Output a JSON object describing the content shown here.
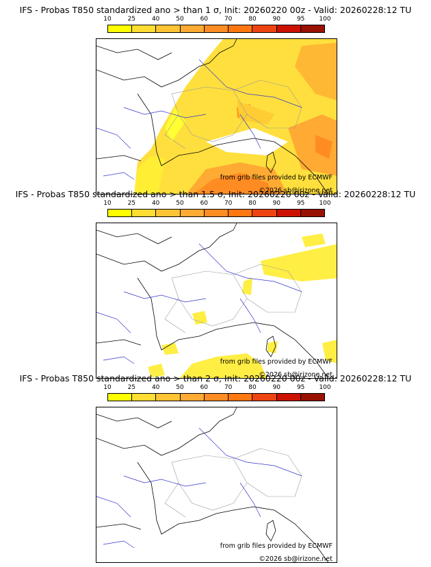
{
  "colorbar": {
    "ticks": [
      "10",
      "25",
      "40",
      "50",
      "60",
      "70",
      "80",
      "90",
      "95",
      "100"
    ],
    "colors": [
      "#ffff00",
      "#ffdd33",
      "#ffc433",
      "#ffaa33",
      "#ff8c22",
      "#ff7711",
      "#ee4411",
      "#cc1100",
      "#991100",
      "#660800"
    ]
  },
  "panels": [
    {
      "title": "IFS - Probas T850  standardized ano > than 1 σ, Init: 20260220 00z - Valid: 20260228:12 TU",
      "credit": "from grib files provided by ECMWF",
      "copyright": "©2026 sb@irizone.net"
    },
    {
      "title": "IFS - Probas T850  standardized ano > than 1.5 σ, Init: 20260220 00z - Valid: 20260228:12 TU",
      "credit": "from grib files provided by ECMWF",
      "copyright": "©2026 sb@irizone.net"
    },
    {
      "title": "IFS - Probas T850  standardized ano > than 2 σ, Init: 20260220 00z - Valid: 20260228:12 TU",
      "credit": "from grib files provided by ECMWF",
      "copyright": "©2026 sb@irizone.net"
    }
  ]
}
